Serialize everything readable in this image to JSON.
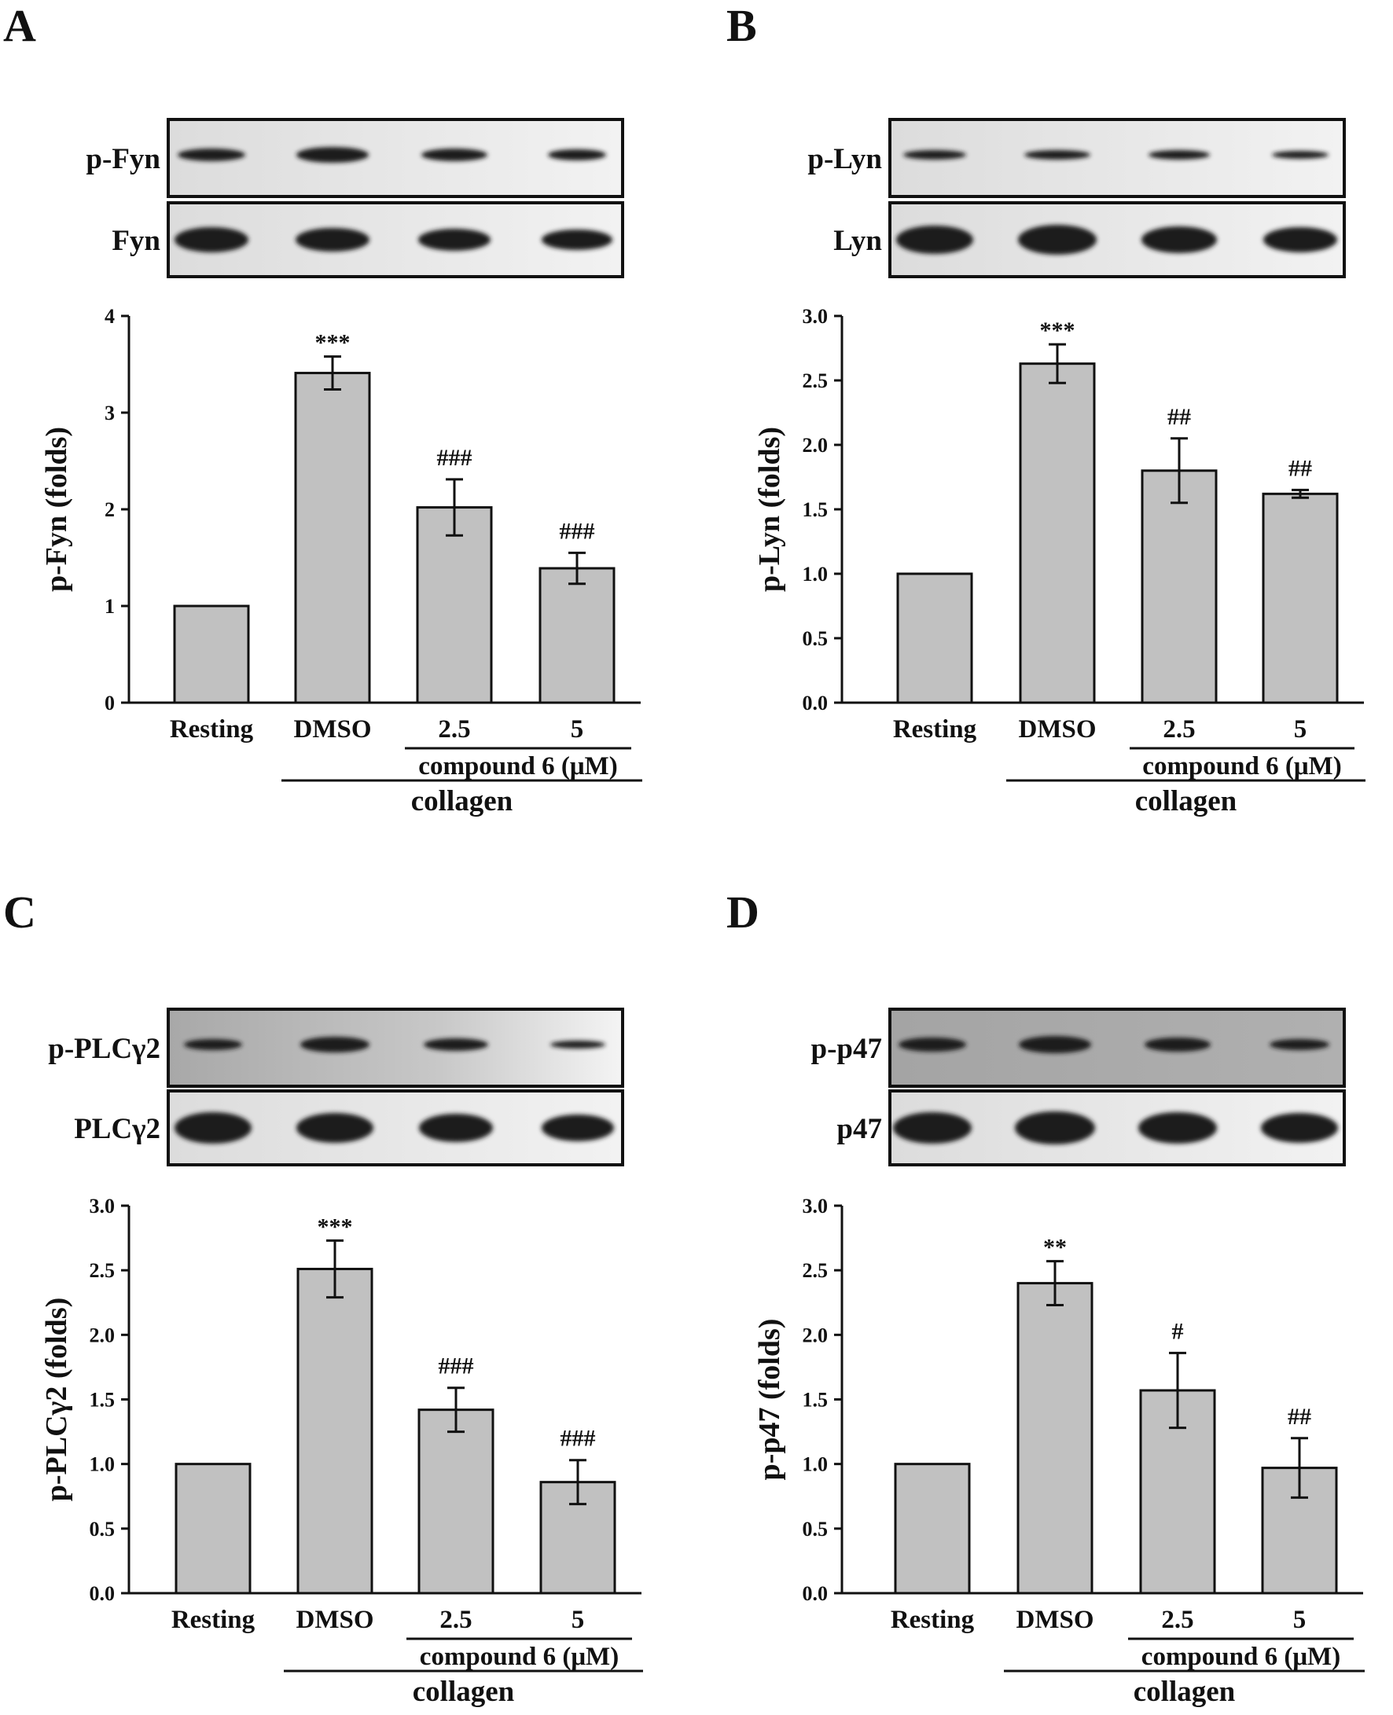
{
  "colors": {
    "bar": "#c1c1c1",
    "axis": "#111111",
    "blot_light": "#ebebeb",
    "blot_mid": "#b8b8b8",
    "blot_dark": "#a0a0a0"
  },
  "chart_data": [
    {
      "panel": "A",
      "type": "bar",
      "blots": [
        "p-Fyn",
        "Fyn"
      ],
      "ylabel": "p-Fyn (folds)",
      "ylim": [
        0,
        4
      ],
      "yticks": [
        0,
        1,
        2,
        3,
        4
      ],
      "ytick_labels": [
        "0",
        "1",
        "2",
        "3",
        "4"
      ],
      "categories": [
        "Resting",
        "DMSO",
        "2.5",
        "5"
      ],
      "values": [
        1.0,
        3.41,
        2.02,
        1.39
      ],
      "errors": [
        0,
        0.17,
        0.29,
        0.16
      ],
      "annotations": [
        "",
        "***",
        "###",
        "###"
      ],
      "group_label": "compound 6 (μM)",
      "treatment_label": "collagen"
    },
    {
      "panel": "B",
      "type": "bar",
      "blots": [
        "p-Lyn",
        "Lyn"
      ],
      "ylabel": "p-Lyn (folds)",
      "ylim": [
        0,
        3
      ],
      "yticks": [
        0,
        0.5,
        1,
        1.5,
        2,
        2.5,
        3
      ],
      "ytick_labels": [
        "0.0",
        "0.5",
        "1.0",
        "1.5",
        "2.0",
        "2.5",
        "3.0"
      ],
      "categories": [
        "Resting",
        "DMSO",
        "2.5",
        "5"
      ],
      "values": [
        1.0,
        2.63,
        1.8,
        1.62
      ],
      "errors": [
        0,
        0.15,
        0.25,
        0.03
      ],
      "annotations": [
        "",
        "***",
        "##",
        "##"
      ],
      "group_label": "compound 6 (μM)",
      "treatment_label": "collagen"
    },
    {
      "panel": "C",
      "type": "bar",
      "blots": [
        "p-PLCγ2",
        "PLCγ2"
      ],
      "ylabel": "p-PLCγ2 (folds)",
      "ylim": [
        0,
        3
      ],
      "yticks": [
        0,
        0.5,
        1,
        1.5,
        2,
        2.5,
        3
      ],
      "ytick_labels": [
        "0.0",
        "0.5",
        "1.0",
        "1.5",
        "2.0",
        "2.5",
        "3.0"
      ],
      "categories": [
        "Resting",
        "DMSO",
        "2.5",
        "5"
      ],
      "values": [
        1.0,
        2.51,
        1.42,
        0.86
      ],
      "errors": [
        0,
        0.22,
        0.17,
        0.17
      ],
      "annotations": [
        "",
        "***",
        "###",
        "###"
      ],
      "group_label": "compound 6 (μM)",
      "treatment_label": "collagen"
    },
    {
      "panel": "D",
      "type": "bar",
      "blots": [
        "p-p47",
        "p47"
      ],
      "ylabel": "p-p47 (folds)",
      "ylim": [
        0,
        3
      ],
      "yticks": [
        0,
        0.5,
        1,
        1.5,
        2,
        2.5,
        3
      ],
      "ytick_labels": [
        "0.0",
        "0.5",
        "1.0",
        "1.5",
        "2.0",
        "2.5",
        "3.0"
      ],
      "categories": [
        "Resting",
        "DMSO",
        "2.5",
        "5"
      ],
      "values": [
        1.0,
        2.4,
        1.57,
        0.97
      ],
      "errors": [
        0,
        0.17,
        0.29,
        0.23
      ],
      "annotations": [
        "",
        "**",
        "#",
        "##"
      ],
      "group_label": "compound 6 (μM)",
      "treatment_label": "collagen"
    }
  ]
}
